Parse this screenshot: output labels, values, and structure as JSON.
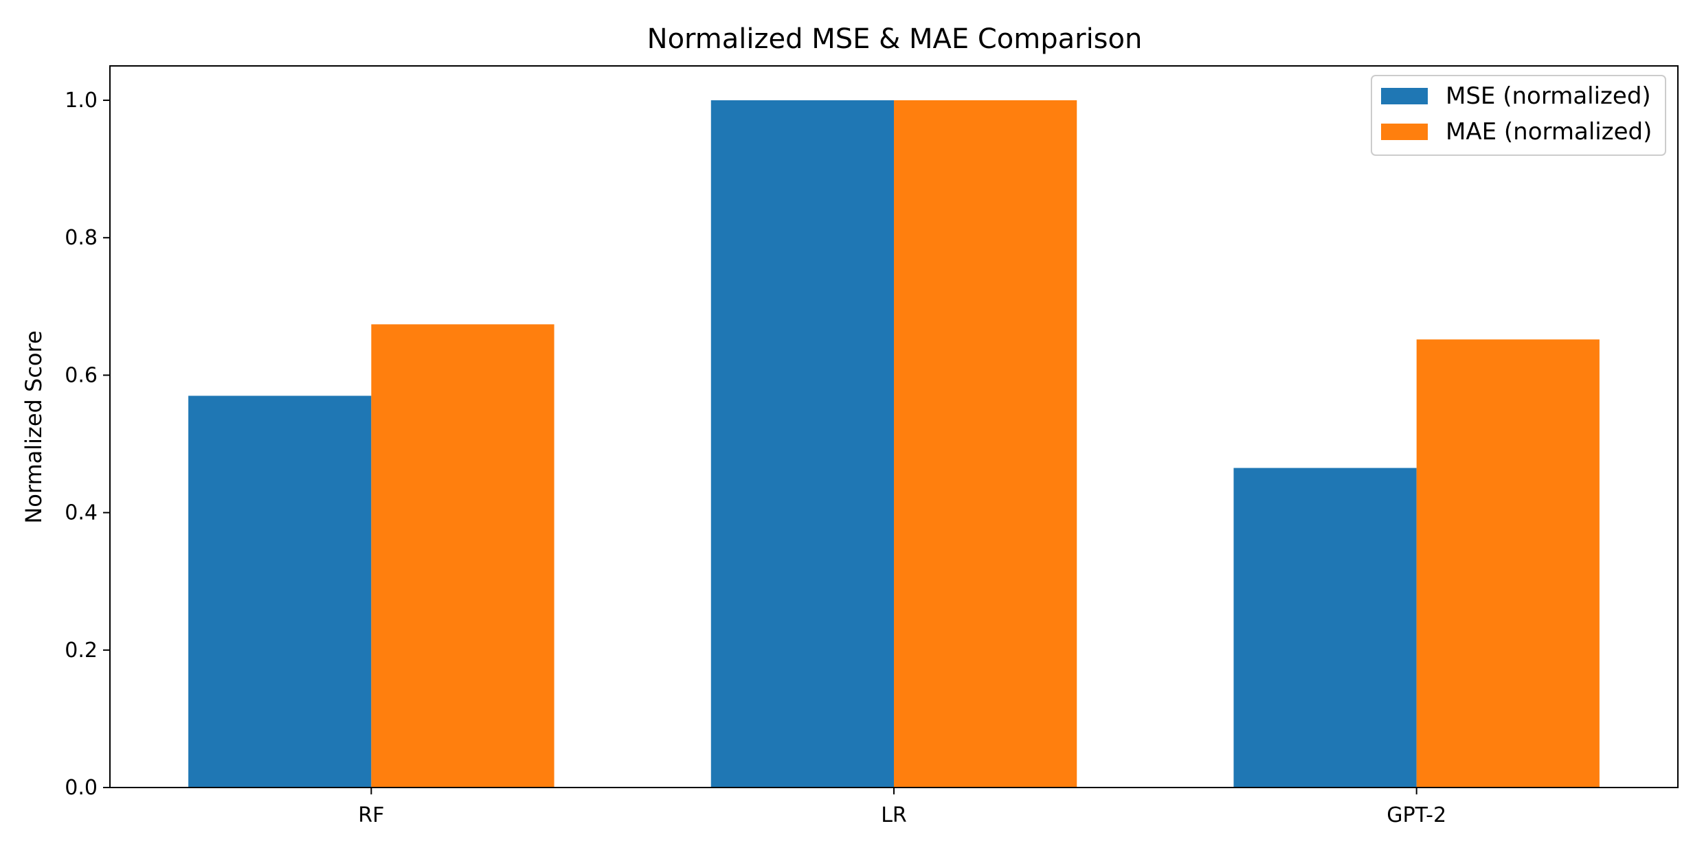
{
  "chart_data": {
    "type": "bar",
    "title": "Normalized MSE & MAE Comparison",
    "xlabel": "",
    "ylabel": "Normalized Score",
    "categories": [
      "RF",
      "LR",
      "GPT-2"
    ],
    "series": [
      {
        "name": "MSE (normalized)",
        "color": "#1f77b4",
        "values": [
          0.57,
          1.0,
          0.465
        ]
      },
      {
        "name": "MAE (normalized)",
        "color": "#ff7f0e",
        "values": [
          0.674,
          1.0,
          0.652
        ]
      }
    ],
    "ylim": [
      0,
      1.05
    ],
    "yticks": [
      0.0,
      0.2,
      0.4,
      0.6,
      0.8,
      1.0
    ],
    "ytick_labels": [
      "0.0",
      "0.2",
      "0.4",
      "0.6",
      "0.8",
      "1.0"
    ],
    "grid": false,
    "legend_position": "top-right"
  }
}
